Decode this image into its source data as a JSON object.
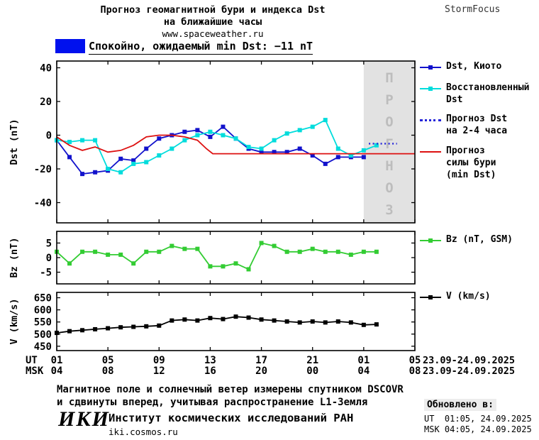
{
  "header": {
    "title_line1": "Прогноз геомагнитной бури и индекса Dst",
    "title_line2": "на ближайшие часы",
    "site": "www.spaceweather.ru",
    "brand": "StormFocus"
  },
  "status": {
    "label": "Спокойно, ожидаемый min Dst: −11 nT",
    "swatch_color": "#0011ee"
  },
  "chart_data": {
    "type": "line",
    "xaxis": {
      "xlim": [
        1,
        29
      ],
      "ticks": [
        1,
        5,
        9,
        13,
        17,
        21,
        25,
        29
      ],
      "ut": {
        "label": "UT",
        "ticklabels": [
          "01",
          "05",
          "09",
          "13",
          "17",
          "21",
          "01",
          "05"
        ],
        "date": "23.09-24.09.2025"
      },
      "msk": {
        "label": "MSK",
        "ticklabels": [
          "04",
          "08",
          "12",
          "16",
          "20",
          "00",
          "04",
          "08"
        ],
        "date": "23.09-24.09.2025"
      }
    },
    "panels": [
      {
        "ylabel": "Dst (nT)",
        "ylim": [
          -52,
          44
        ],
        "yticks": [
          -40,
          -20,
          0,
          20,
          40
        ],
        "forecast_region": [
          25,
          29
        ],
        "forecast_label": "ПРОГНОЗ",
        "series": [
          {
            "name": "Dst, Киото",
            "color": "#1212cc",
            "marker": "square",
            "x": [
              1,
              2,
              3,
              4,
              5,
              6,
              7,
              8,
              9,
              10,
              11,
              12,
              13,
              14,
              15,
              16,
              17,
              18,
              19,
              20,
              21,
              22,
              23,
              24,
              25
            ],
            "y": [
              -3,
              -13,
              -23,
              -22,
              -21,
              -14,
              -15,
              -8,
              -2,
              0,
              2,
              3,
              -1,
              5,
              -2,
              -8,
              -10,
              -10,
              -10,
              -8,
              -12,
              -17,
              -13,
              -13,
              -13
            ]
          },
          {
            "name": "Восстановленный Dst",
            "color": "#00dcdc",
            "marker": "square",
            "x": [
              1,
              2,
              3,
              4,
              5,
              6,
              7,
              8,
              9,
              10,
              11,
              12,
              13,
              14,
              15,
              16,
              17,
              18,
              19,
              20,
              21,
              22,
              23,
              24,
              25,
              26
            ],
            "y": [
              -3,
              -4,
              -3,
              -3,
              -20,
              -22,
              -17,
              -16,
              -12,
              -8,
              -3,
              0,
              2,
              0,
              -2,
              -7,
              -8,
              -3,
              1,
              3,
              5,
              9,
              -8,
              -12,
              -9,
              -6
            ]
          },
          {
            "name": "Прогноз Dst на 2-4 часа",
            "color": "#2323d9",
            "style": "dotted",
            "x": [
              25.4,
              27.6
            ],
            "y": [
              -5,
              -5
            ]
          },
          {
            "name": "Прогноз силы бури (min Dst)",
            "color": "#dd1111",
            "style": "solid",
            "x": [
              1,
              2,
              3,
              4,
              5,
              6,
              7,
              8,
              9,
              10,
              11,
              12,
              12.7,
              13.2,
              29
            ],
            "y": [
              -1,
              -6,
              -9,
              -7,
              -10,
              -9,
              -6,
              -1,
              0,
              0,
              -1,
              -3,
              -8,
              -11,
              -11
            ]
          }
        ]
      },
      {
        "ylabel": "Bz (nT)",
        "ylim": [
          -9,
          9
        ],
        "yticks": [
          -5,
          0,
          5
        ],
        "series": [
          {
            "name": "Bz (nT, GSM)",
            "color": "#33cc33",
            "marker": "square",
            "x": [
              1,
              2,
              3,
              4,
              5,
              6,
              7,
              8,
              9,
              10,
              11,
              12,
              13,
              14,
              15,
              16,
              17,
              18,
              19,
              20,
              21,
              22,
              23,
              24,
              25,
              26
            ],
            "y": [
              2,
              -2,
              2,
              2,
              1,
              1,
              -2,
              2,
              2,
              4,
              3,
              3,
              -3,
              -3,
              -2,
              -4,
              5,
              4,
              2,
              2,
              3,
              2,
              2,
              1,
              2,
              2
            ]
          }
        ]
      },
      {
        "ylabel": "V (km/s)",
        "ylim": [
          432,
          672
        ],
        "yticks": [
          450,
          500,
          550,
          600,
          650
        ],
        "series": [
          {
            "name": "V (km/s)",
            "color": "#000000",
            "marker": "square",
            "x": [
              1,
              2,
              3,
              4,
              5,
              6,
              7,
              8,
              9,
              10,
              11,
              12,
              13,
              14,
              15,
              16,
              17,
              18,
              19,
              20,
              21,
              22,
              23,
              24,
              25,
              26
            ],
            "y": [
              505,
              512,
              516,
              520,
              524,
              528,
              530,
              532,
              535,
              556,
              560,
              556,
              566,
              562,
              572,
              568,
              560,
              556,
              552,
              548,
              552,
              548,
              552,
              548,
              538,
              540
            ]
          }
        ]
      }
    ]
  },
  "legend": {
    "dst_items": [
      {
        "label": "Dst, Киото",
        "color": "#1212cc"
      },
      {
        "label": "Восстановленный\nDst",
        "color": "#00dcdc"
      },
      {
        "label": "Прогноз Dst\nна 2-4 часа",
        "color": "#2323d9"
      },
      {
        "label": "Прогноз\nсилы бури\n(min Dst)",
        "color": "#dd1111"
      }
    ],
    "bz_item": {
      "label": "Bz (nT, GSM)",
      "color": "#33cc33"
    },
    "v_item": {
      "label": "V (km/s)",
      "color": "#000000"
    }
  },
  "footer": {
    "note_line1": "Магнитное поле и солнечный ветер измерены спутником DSCOVR",
    "note_line2": "и сдвинуты вперед, учитывая распространение L1-Земля",
    "logo": "ИКИ",
    "institute": "Институт космических исследований РАН",
    "site": "iki.cosmos.ru",
    "updated": {
      "label": "Обновлено в:",
      "ut": "UT  01:05, 24.09.2025",
      "msk": "MSK 04:05, 24.09.2025"
    }
  }
}
